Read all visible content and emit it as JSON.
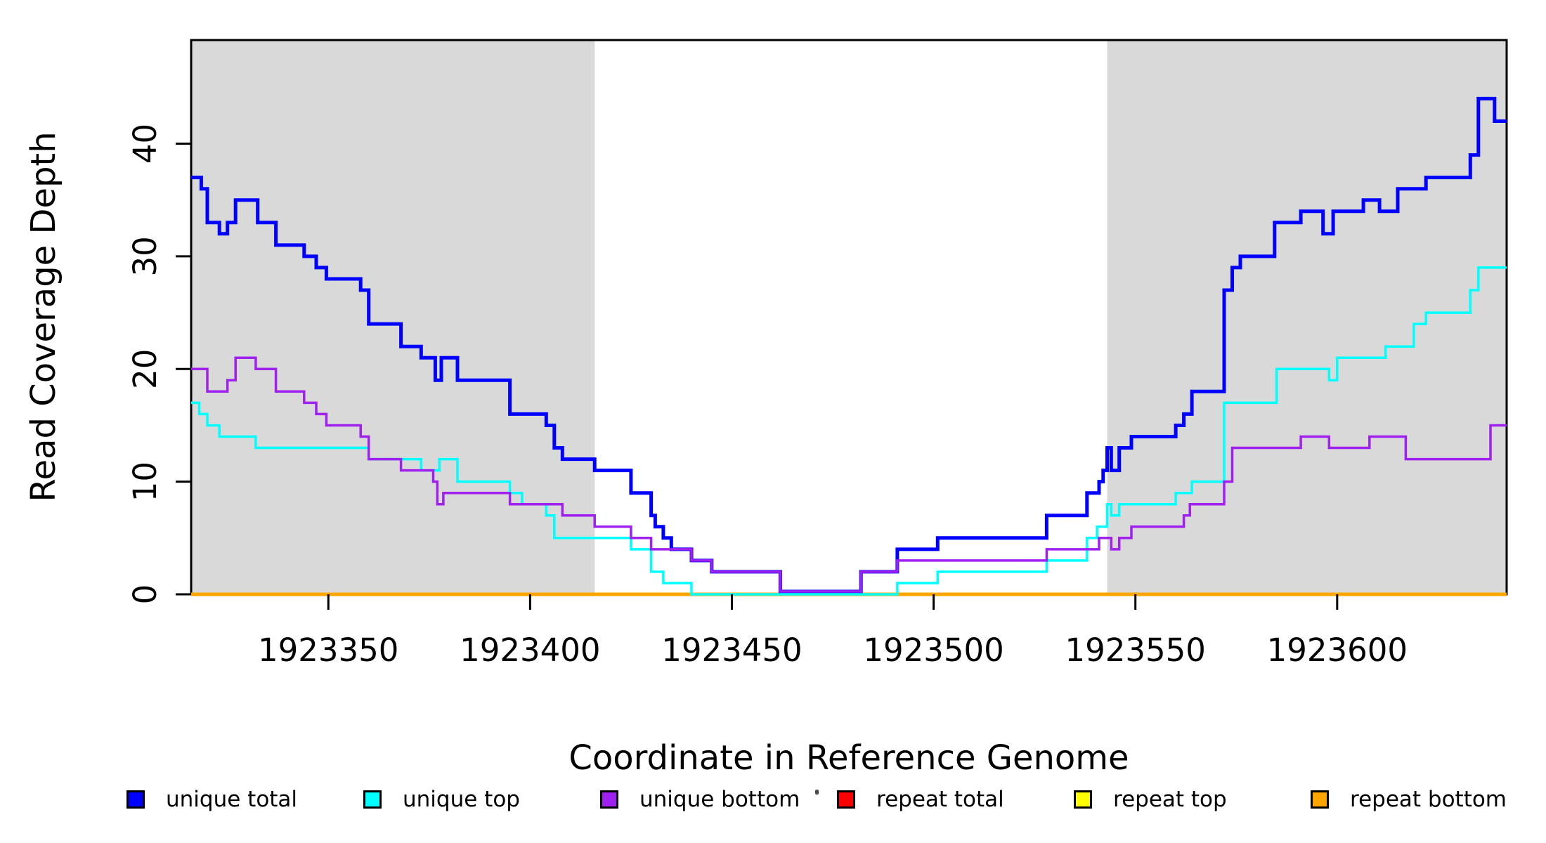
{
  "chart_data": {
    "type": "line",
    "step": "post",
    "xlabel": "Coordinate in Reference Genome",
    "ylabel": "Read Coverage Depth",
    "xlim": [
      1923316,
      1923642
    ],
    "ylim": [
      0,
      49.2
    ],
    "x_ticks": [
      1923350,
      1923400,
      1923450,
      1923500,
      1923550,
      1923600
    ],
    "y_ticks": [
      0,
      10,
      20,
      30,
      40
    ],
    "grid": false,
    "legend_position": "bottom",
    "plot_background": "#ffffff",
    "axis_color": "#000000",
    "highlight_bands": [
      {
        "x0": 1923316,
        "x1": 1923416,
        "color": "#d9d9d9"
      },
      {
        "x0": 1923543,
        "x1": 1923642,
        "color": "#d9d9d9"
      }
    ],
    "series": [
      {
        "name": "repeat total",
        "color": "#ff0000",
        "linewidth": 3.5,
        "points": [
          [
            1923316,
            0
          ]
        ]
      },
      {
        "name": "repeat top",
        "color": "#ffff00",
        "linewidth": 3.5,
        "points": [
          [
            1923316,
            0
          ]
        ]
      },
      {
        "name": "repeat bottom",
        "color": "#ffa500",
        "linewidth": 5,
        "points": [
          [
            1923316,
            0
          ]
        ]
      },
      {
        "name": "unique total",
        "color": "#0000ff",
        "linewidth": 5,
        "points": [
          [
            1923316,
            37
          ],
          [
            1923318.5,
            36
          ],
          [
            1923320,
            33
          ],
          [
            1923323,
            32
          ],
          [
            1923325,
            33
          ],
          [
            1923327,
            35
          ],
          [
            1923332.5,
            33
          ],
          [
            1923337,
            31
          ],
          [
            1923344,
            30
          ],
          [
            1923347,
            29
          ],
          [
            1923349.5,
            28
          ],
          [
            1923358,
            27
          ],
          [
            1923360,
            24
          ],
          [
            1923368,
            22
          ],
          [
            1923373,
            21
          ],
          [
            1923376.5,
            19
          ],
          [
            1923378,
            21
          ],
          [
            1923382,
            19
          ],
          [
            1923395,
            16
          ],
          [
            1923404,
            15
          ],
          [
            1923406,
            13
          ],
          [
            1923408,
            12
          ],
          [
            1923416,
            11
          ],
          [
            1923425,
            9
          ],
          [
            1923430,
            7
          ],
          [
            1923431,
            6
          ],
          [
            1923433,
            5
          ],
          [
            1923435,
            4
          ],
          [
            1923440,
            3
          ],
          [
            1923445,
            2
          ],
          [
            1923462,
            0.25
          ],
          [
            1923482,
            2
          ],
          [
            1923491,
            4
          ],
          [
            1923501,
            5
          ],
          [
            1923528,
            7
          ],
          [
            1923538,
            9
          ],
          [
            1923541,
            10
          ],
          [
            1923542,
            11
          ],
          [
            1923543,
            13
          ],
          [
            1923544,
            11
          ],
          [
            1923546,
            13
          ],
          [
            1923549,
            14
          ],
          [
            1923560,
            15
          ],
          [
            1923562,
            16
          ],
          [
            1923564,
            18
          ],
          [
            1923572,
            27
          ],
          [
            1923574,
            29
          ],
          [
            1923576,
            30
          ],
          [
            1923584.5,
            33
          ],
          [
            1923591,
            34
          ],
          [
            1923596.5,
            32
          ],
          [
            1923599,
            34
          ],
          [
            1923606.5,
            35
          ],
          [
            1923610.5,
            34
          ],
          [
            1923615,
            36
          ],
          [
            1923622,
            37
          ],
          [
            1923633,
            39
          ],
          [
            1923635,
            44
          ],
          [
            1923639,
            42
          ]
        ]
      },
      {
        "name": "unique top",
        "color": "#00ffff",
        "linewidth": 3.5,
        "points": [
          [
            1923316,
            17
          ],
          [
            1923318,
            16
          ],
          [
            1923320,
            15
          ],
          [
            1923323,
            14
          ],
          [
            1923332,
            13
          ],
          [
            1923360,
            12
          ],
          [
            1923373,
            11
          ],
          [
            1923377.5,
            12
          ],
          [
            1923382,
            10
          ],
          [
            1923395,
            9
          ],
          [
            1923398,
            8
          ],
          [
            1923404,
            7
          ],
          [
            1923406,
            5
          ],
          [
            1923425,
            4
          ],
          [
            1923430,
            2
          ],
          [
            1923433,
            1
          ],
          [
            1923440,
            0
          ],
          [
            1923491,
            1
          ],
          [
            1923501,
            2
          ],
          [
            1923528,
            3
          ],
          [
            1923538,
            5
          ],
          [
            1923540.5,
            6
          ],
          [
            1923543,
            8
          ],
          [
            1923544,
            7
          ],
          [
            1923546,
            8
          ],
          [
            1923560,
            9
          ],
          [
            1923564,
            10
          ],
          [
            1923572,
            17
          ],
          [
            1923585,
            20
          ],
          [
            1923598,
            19
          ],
          [
            1923600,
            21
          ],
          [
            1923612,
            22
          ],
          [
            1923619,
            24
          ],
          [
            1923622,
            25
          ],
          [
            1923633,
            27
          ],
          [
            1923635,
            29
          ]
        ]
      },
      {
        "name": "unique bottom",
        "color": "#a020f0",
        "linewidth": 3.5,
        "points": [
          [
            1923316,
            20
          ],
          [
            1923320,
            18
          ],
          [
            1923325,
            19
          ],
          [
            1923327,
            21
          ],
          [
            1923332,
            20
          ],
          [
            1923337,
            18
          ],
          [
            1923344,
            17
          ],
          [
            1923347,
            16
          ],
          [
            1923349.5,
            15
          ],
          [
            1923358,
            14
          ],
          [
            1923360,
            12
          ],
          [
            1923368,
            11
          ],
          [
            1923376,
            10
          ],
          [
            1923377,
            8
          ],
          [
            1923378.5,
            9
          ],
          [
            1923395,
            8
          ],
          [
            1923408,
            7
          ],
          [
            1923416,
            6
          ],
          [
            1923425,
            5
          ],
          [
            1923430,
            4
          ],
          [
            1923440,
            3
          ],
          [
            1923445,
            2
          ],
          [
            1923462,
            0.25
          ],
          [
            1923482,
            2
          ],
          [
            1923491,
            3
          ],
          [
            1923528,
            4
          ],
          [
            1923541,
            5
          ],
          [
            1923544,
            4
          ],
          [
            1923546,
            5
          ],
          [
            1923549,
            6
          ],
          [
            1923562,
            7
          ],
          [
            1923563.5,
            8
          ],
          [
            1923572,
            10
          ],
          [
            1923574,
            13
          ],
          [
            1923591,
            14
          ],
          [
            1923598,
            13
          ],
          [
            1923608,
            14
          ],
          [
            1923617,
            12
          ],
          [
            1923638,
            15
          ]
        ]
      }
    ]
  },
  "legend": {
    "entries": [
      {
        "label": "unique total",
        "color": "#0000ff"
      },
      {
        "label": "unique top",
        "color": "#00ffff"
      },
      {
        "label": "unique bottom",
        "color": "#a020f0"
      },
      {
        "label": "repeat total",
        "color": "#ff0000"
      },
      {
        "label": "repeat top",
        "color": "#ffff00"
      },
      {
        "label": "repeat bottom",
        "color": "#ffa500"
      }
    ]
  }
}
